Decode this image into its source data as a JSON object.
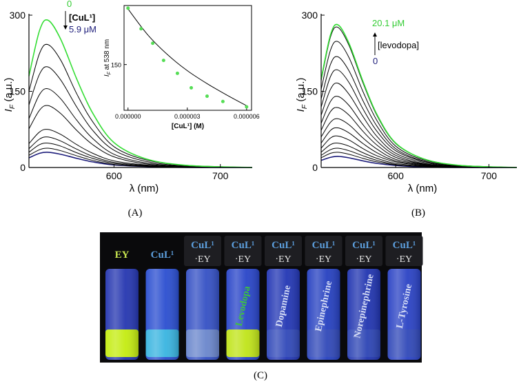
{
  "chart_data": [
    {
      "type": "line",
      "panel": "(A)",
      "x_label": "λ (nm)",
      "y_label": "I",
      "y_label_sub": "F",
      "y_label_rest": " (a.u.)",
      "x": [
        520,
        530,
        538,
        550,
        565,
        580,
        600,
        630,
        670,
        730
      ],
      "xlim": [
        520,
        730
      ],
      "xticks": [
        600,
        700
      ],
      "ylim": [
        0,
        300
      ],
      "yticks": [
        0,
        150,
        300
      ],
      "series": [
        {
          "color": "#1c1c7a",
          "values": [
            19,
            28,
            30,
            26,
            18,
            11,
            5,
            2,
            0,
            0
          ]
        },
        {
          "color": "#000000",
          "values": [
            24,
            35,
            38,
            33,
            23,
            14,
            6,
            2,
            1,
            0
          ]
        },
        {
          "color": "#000000",
          "values": [
            30,
            45,
            48,
            42,
            29,
            18,
            8,
            3,
            1,
            0
          ]
        },
        {
          "color": "#000000",
          "values": [
            37,
            56,
            60,
            52,
            36,
            22,
            10,
            4,
            1,
            0
          ]
        },
        {
          "color": "#000000",
          "values": [
            47,
            70,
            75,
            65,
            45,
            28,
            13,
            5,
            1,
            0
          ]
        },
        {
          "color": "#000000",
          "values": [
            76,
            113,
            122,
            106,
            73,
            45,
            21,
            7,
            2,
            0
          ]
        },
        {
          "color": "#000000",
          "values": [
            96,
            144,
            155,
            135,
            93,
            57,
            26,
            9,
            2,
            0
          ]
        },
        {
          "color": "#000000",
          "values": [
            123,
            184,
            198,
            172,
            119,
            73,
            34,
            12,
            3,
            0
          ]
        },
        {
          "color": "#000000",
          "values": [
            150,
            225,
            242,
            211,
            145,
            90,
            41,
            15,
            4,
            0
          ]
        },
        {
          "color": "#33dd33",
          "values": [
            180,
            270,
            290,
            252,
            174,
            107,
            49,
            17,
            4,
            0
          ]
        }
      ],
      "annotations": [
        {
          "text": "0",
          "color": "#33cc33"
        },
        {
          "text": "[CuL¹]",
          "color": "#000000"
        },
        {
          "text": "5.9 μM",
          "color": "#1c1c7a"
        }
      ]
    },
    {
      "type": "scatter",
      "x_label": "[CuL¹] (M)",
      "y_label": "I",
      "y_label_sub": "F",
      "y_label_rest": " at 538 nm",
      "x": [
        0,
        6.6e-07,
        1.25e-06,
        1.8e-06,
        2.5e-06,
        3.2e-06,
        4e-06,
        4.8e-06,
        6e-06
      ],
      "values": [
        298,
        244,
        206,
        161,
        127,
        89,
        67,
        53,
        39
      ],
      "color": "#55dd55",
      "fit": {
        "x": [
          0,
          1e-06,
          2e-06,
          3e-06,
          4e-06,
          5e-06,
          6e-06
        ],
        "values": [
          296,
          228,
          176,
          134,
          100,
          70,
          42
        ],
        "color": "#000000"
      },
      "xlim": [
        -2e-07,
        6.25e-06
      ],
      "xticks": [
        {
          "value": 0,
          "label": "0.000000"
        },
        {
          "value": 3e-06,
          "label": "0.000003"
        },
        {
          "value": 6e-06,
          "label": "0.000006"
        }
      ],
      "ylim": [
        30,
        305
      ],
      "yticks": [
        150
      ]
    },
    {
      "type": "line",
      "panel": "(B)",
      "x_label": "λ (nm)",
      "y_label": "I",
      "y_label_sub": "F",
      "y_label_rest": " (a.u.)",
      "x": [
        520,
        530,
        538,
        550,
        565,
        580,
        600,
        630,
        670,
        730
      ],
      "xlim": [
        520,
        730
      ],
      "xticks": [
        600,
        700
      ],
      "ylim": [
        0,
        300
      ],
      "yticks": [
        0,
        150,
        300
      ],
      "series": [
        {
          "color": "#1c1c7a",
          "values": [
            14,
            20,
            22,
            19,
            13,
            8,
            4,
            1,
            0,
            0
          ]
        },
        {
          "color": "#000000",
          "values": [
            19,
            28,
            30,
            26,
            18,
            11,
            5,
            2,
            0,
            0
          ]
        },
        {
          "color": "#000000",
          "values": [
            24,
            35,
            38,
            33,
            23,
            14,
            6,
            2,
            1,
            0
          ]
        },
        {
          "color": "#000000",
          "values": [
            30,
            45,
            48,
            42,
            29,
            18,
            8,
            3,
            1,
            0
          ]
        },
        {
          "color": "#000000",
          "values": [
            38,
            58,
            62,
            54,
            37,
            23,
            11,
            4,
            1,
            0
          ]
        },
        {
          "color": "#000000",
          "values": [
            48,
            73,
            78,
            68,
            47,
            29,
            13,
            5,
            1,
            0
          ]
        },
        {
          "color": "#000000",
          "values": [
            60,
            89,
            96,
            84,
            58,
            36,
            16,
            6,
            1,
            0
          ]
        },
        {
          "color": "#000000",
          "values": [
            73,
            110,
            118,
            103,
            71,
            44,
            20,
            7,
            2,
            0
          ]
        },
        {
          "color": "#000000",
          "values": [
            87,
            130,
            140,
            122,
            84,
            52,
            24,
            8,
            2,
            0
          ]
        },
        {
          "color": "#000000",
          "values": [
            103,
            154,
            166,
            144,
            100,
            61,
            28,
            10,
            2,
            0
          ]
        },
        {
          "color": "#000000",
          "values": [
            119,
            179,
            192,
            167,
            115,
            71,
            33,
            12,
            3,
            0
          ]
        },
        {
          "color": "#000000",
          "values": [
            135,
            203,
            218,
            190,
            131,
            81,
            37,
            13,
            3,
            0
          ]
        },
        {
          "color": "#000000",
          "values": [
            154,
            231,
            248,
            216,
            149,
            92,
            42,
            15,
            4,
            0
          ]
        },
        {
          "color": "#000000",
          "values": [
            171,
            257,
            276,
            240,
            166,
            102,
            47,
            17,
            4,
            0
          ]
        },
        {
          "color": "#33dd33",
          "values": [
            174,
            261,
            281,
            244,
            169,
            104,
            48,
            17,
            4,
            0
          ]
        }
      ],
      "annotations": [
        {
          "text": "20.1 μM",
          "color": "#33cc33"
        },
        {
          "text": "[levodopa]",
          "color": "#000000"
        },
        {
          "text": "0",
          "color": "#1c1c7a"
        }
      ]
    }
  ],
  "photo": {
    "panel": "(C)",
    "vials": [
      {
        "cap": "EY"
      },
      {
        "cap": "CuL¹"
      },
      {
        "cap": "CuL¹",
        "cap2": "·EY"
      },
      {
        "cap": "CuL¹",
        "cap2": "·EY",
        "analyte": "Levodopa"
      },
      {
        "cap": "CuL¹",
        "cap2": "·EY",
        "analyte": "Dopamine"
      },
      {
        "cap": "CuL¹",
        "cap2": "·EY",
        "analyte": "Epinephrine"
      },
      {
        "cap": "CuL¹",
        "cap2": "·EY",
        "analyte": "Norepinephrine"
      },
      {
        "cap": "CuL¹",
        "cap2": "·EY",
        "analyte": "L-Tyrosine"
      }
    ]
  }
}
